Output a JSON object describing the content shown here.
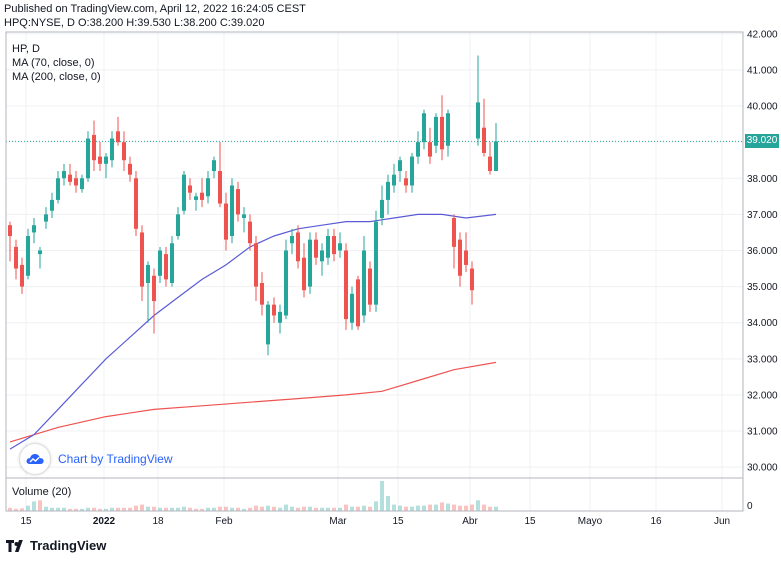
{
  "header": {
    "published": "Published on TradingView.com, April 12, 2022 16:24:05 CEST",
    "ohlc_line": "HPQ:NYSE, D  O:38.200  H:39.530  L:38.200  C:39.020"
  },
  "legend": {
    "symbol": "HP, D",
    "ma70": "MA (70, close, 0)",
    "ma200": "MA (200, close, 0)",
    "volume": "Volume (20)"
  },
  "branding": {
    "chart_by": "Chart by TradingView",
    "footer": "TradingView"
  },
  "colors": {
    "up": "#26a69a",
    "down": "#ef5350",
    "ma70": "#5b5bd6",
    "ma200": "#ef5350",
    "grid": "#eef0f3"
  },
  "chart_data": {
    "type": "candlestick",
    "symbol": "HPQ:NYSE",
    "interval": "D",
    "last_price": "39.020",
    "ylim": [
      29.7,
      42.05
    ],
    "y_ticks": [
      "30.000",
      "31.000",
      "32.000",
      "33.000",
      "34.000",
      "35.000",
      "36.000",
      "37.000",
      "38.000",
      "39.000",
      "40.000",
      "41.000",
      "42.000"
    ],
    "x_ticks": [
      {
        "label": "15",
        "t": 0
      },
      {
        "label": "2022",
        "t": 13
      },
      {
        "label": "18",
        "t": 22
      },
      {
        "label": "Feb",
        "t": 33
      },
      {
        "label": "Mar",
        "t": 52
      },
      {
        "label": "15",
        "t": 62
      },
      {
        "label": "Abr",
        "t": 74
      },
      {
        "label": "15",
        "t": 84
      },
      {
        "label": "Mayo",
        "t": 94
      },
      {
        "label": "16",
        "t": 105
      },
      {
        "label": "Jun",
        "t": 116
      }
    ],
    "candles": [
      {
        "t": 0,
        "o": 36.7,
        "h": 36.8,
        "l": 35.7,
        "c": 36.4
      },
      {
        "t": 1,
        "o": 36.1,
        "h": 36.3,
        "l": 35.2,
        "c": 35.5
      },
      {
        "t": 2,
        "o": 35.6,
        "h": 35.8,
        "l": 34.8,
        "c": 35.0
      },
      {
        "t": 3,
        "o": 35.3,
        "h": 36.6,
        "l": 35.2,
        "c": 36.4
      },
      {
        "t": 4,
        "o": 36.5,
        "h": 36.9,
        "l": 36.2,
        "c": 36.7
      },
      {
        "t": 5,
        "o": 35.9,
        "h": 36.1,
        "l": 35.5,
        "c": 36.0
      },
      {
        "t": 6,
        "o": 36.8,
        "h": 37.2,
        "l": 36.6,
        "c": 37.0
      },
      {
        "t": 7,
        "o": 37.1,
        "h": 37.6,
        "l": 36.9,
        "c": 37.4
      },
      {
        "t": 8,
        "o": 37.4,
        "h": 38.2,
        "l": 37.3,
        "c": 38.0
      },
      {
        "t": 9,
        "o": 38.0,
        "h": 38.4,
        "l": 37.8,
        "c": 38.2
      },
      {
        "t": 10,
        "o": 38.1,
        "h": 38.4,
        "l": 37.8,
        "c": 37.9
      },
      {
        "t": 11,
        "o": 38.0,
        "h": 38.2,
        "l": 37.6,
        "c": 37.8
      },
      {
        "t": 12,
        "o": 37.7,
        "h": 38.1,
        "l": 37.6,
        "c": 38.0
      },
      {
        "t": 13,
        "o": 38.0,
        "h": 39.3,
        "l": 37.9,
        "c": 39.1
      },
      {
        "t": 14,
        "o": 39.2,
        "h": 39.6,
        "l": 38.2,
        "c": 38.5
      },
      {
        "t": 15,
        "o": 38.6,
        "h": 39.0,
        "l": 38.2,
        "c": 38.4
      },
      {
        "t": 16,
        "o": 38.4,
        "h": 38.7,
        "l": 38.0,
        "c": 38.6
      },
      {
        "t": 17,
        "o": 38.5,
        "h": 39.3,
        "l": 38.3,
        "c": 39.1
      },
      {
        "t": 18,
        "o": 39.3,
        "h": 39.7,
        "l": 38.9,
        "c": 39.0
      },
      {
        "t": 19,
        "o": 39.0,
        "h": 39.3,
        "l": 38.2,
        "c": 38.5
      },
      {
        "t": 20,
        "o": 38.4,
        "h": 38.6,
        "l": 37.9,
        "c": 38.1
      },
      {
        "t": 21,
        "o": 38.0,
        "h": 38.2,
        "l": 36.4,
        "c": 36.6
      },
      {
        "t": 22,
        "o": 36.5,
        "h": 36.7,
        "l": 34.6,
        "c": 35.0
      },
      {
        "t": 23,
        "o": 35.1,
        "h": 35.7,
        "l": 34.0,
        "c": 35.6
      },
      {
        "t": 24,
        "o": 35.3,
        "h": 35.5,
        "l": 33.7,
        "c": 34.6
      },
      {
        "t": 25,
        "o": 35.3,
        "h": 36.1,
        "l": 35.1,
        "c": 36.0
      },
      {
        "t": 26,
        "o": 35.9,
        "h": 36.1,
        "l": 35.0,
        "c": 35.2
      },
      {
        "t": 27,
        "o": 35.1,
        "h": 36.4,
        "l": 35.0,
        "c": 36.2
      },
      {
        "t": 28,
        "o": 36.4,
        "h": 37.2,
        "l": 36.3,
        "c": 37.0
      },
      {
        "t": 29,
        "o": 37.1,
        "h": 38.2,
        "l": 37.0,
        "c": 38.1
      },
      {
        "t": 30,
        "o": 37.8,
        "h": 38.0,
        "l": 37.4,
        "c": 37.6
      },
      {
        "t": 31,
        "o": 37.4,
        "h": 37.6,
        "l": 37.1,
        "c": 37.5
      },
      {
        "t": 32,
        "o": 37.6,
        "h": 38.0,
        "l": 37.2,
        "c": 37.4
      },
      {
        "t": 33,
        "o": 37.5,
        "h": 38.2,
        "l": 37.3,
        "c": 38.0
      },
      {
        "t": 34,
        "o": 38.2,
        "h": 38.6,
        "l": 38.0,
        "c": 38.5
      },
      {
        "t": 35,
        "o": 38.2,
        "h": 39.0,
        "l": 37.2,
        "c": 37.3
      },
      {
        "t": 36,
        "o": 37.3,
        "h": 37.6,
        "l": 36.0,
        "c": 36.3
      },
      {
        "t": 37,
        "o": 36.4,
        "h": 38.0,
        "l": 36.2,
        "c": 37.8
      },
      {
        "t": 38,
        "o": 37.7,
        "h": 37.9,
        "l": 36.8,
        "c": 37.0
      },
      {
        "t": 39,
        "o": 36.9,
        "h": 37.2,
        "l": 36.5,
        "c": 37.0
      },
      {
        "t": 40,
        "o": 36.8,
        "h": 37.0,
        "l": 36.0,
        "c": 36.2
      },
      {
        "t": 41,
        "o": 36.2,
        "h": 36.4,
        "l": 34.6,
        "c": 35.0
      },
      {
        "t": 42,
        "o": 35.1,
        "h": 35.4,
        "l": 34.2,
        "c": 34.5
      },
      {
        "t": 43,
        "o": 33.4,
        "h": 34.6,
        "l": 33.1,
        "c": 34.5
      },
      {
        "t": 44,
        "o": 34.5,
        "h": 34.7,
        "l": 34.0,
        "c": 34.2
      },
      {
        "t": 45,
        "o": 34.0,
        "h": 34.5,
        "l": 33.7,
        "c": 34.3
      },
      {
        "t": 46,
        "o": 34.2,
        "h": 36.3,
        "l": 34.1,
        "c": 36.0
      },
      {
        "t": 47,
        "o": 36.2,
        "h": 36.6,
        "l": 35.9,
        "c": 36.4
      },
      {
        "t": 48,
        "o": 36.5,
        "h": 36.7,
        "l": 35.5,
        "c": 35.7
      },
      {
        "t": 49,
        "o": 35.8,
        "h": 36.2,
        "l": 34.7,
        "c": 34.9
      },
      {
        "t": 50,
        "o": 35.0,
        "h": 36.5,
        "l": 34.8,
        "c": 36.3
      },
      {
        "t": 51,
        "o": 36.3,
        "h": 36.5,
        "l": 35.6,
        "c": 35.8
      },
      {
        "t": 52,
        "o": 35.7,
        "h": 36.2,
        "l": 35.3,
        "c": 36.0
      },
      {
        "t": 53,
        "o": 35.8,
        "h": 36.6,
        "l": 35.6,
        "c": 36.4
      },
      {
        "t": 54,
        "o": 36.4,
        "h": 36.6,
        "l": 35.7,
        "c": 35.9
      },
      {
        "t": 55,
        "o": 36.0,
        "h": 36.5,
        "l": 35.8,
        "c": 36.2
      },
      {
        "t": 56,
        "o": 36.0,
        "h": 36.2,
        "l": 33.8,
        "c": 34.1
      },
      {
        "t": 57,
        "o": 34.0,
        "h": 35.0,
        "l": 33.8,
        "c": 34.8
      },
      {
        "t": 58,
        "o": 35.2,
        "h": 35.3,
        "l": 33.8,
        "c": 33.9
      },
      {
        "t": 59,
        "o": 34.2,
        "h": 36.4,
        "l": 34.0,
        "c": 36.0
      },
      {
        "t": 60,
        "o": 35.5,
        "h": 35.7,
        "l": 34.3,
        "c": 34.5
      },
      {
        "t": 61,
        "o": 34.5,
        "h": 37.1,
        "l": 34.3,
        "c": 36.8
      },
      {
        "t": 62,
        "o": 36.9,
        "h": 37.8,
        "l": 36.7,
        "c": 37.4
      },
      {
        "t": 63,
        "o": 37.4,
        "h": 38.1,
        "l": 37.0,
        "c": 37.9
      },
      {
        "t": 64,
        "o": 37.8,
        "h": 38.4,
        "l": 37.6,
        "c": 38.1
      },
      {
        "t": 65,
        "o": 38.2,
        "h": 38.6,
        "l": 37.9,
        "c": 38.5
      },
      {
        "t": 66,
        "o": 38.0,
        "h": 38.2,
        "l": 37.6,
        "c": 37.8
      },
      {
        "t": 67,
        "o": 37.8,
        "h": 38.7,
        "l": 37.6,
        "c": 38.6
      },
      {
        "t": 68,
        "o": 38.6,
        "h": 39.3,
        "l": 38.4,
        "c": 39.0
      },
      {
        "t": 69,
        "o": 39.0,
        "h": 39.9,
        "l": 38.8,
        "c": 39.8
      },
      {
        "t": 70,
        "o": 39.0,
        "h": 39.4,
        "l": 38.4,
        "c": 38.6
      },
      {
        "t": 71,
        "o": 38.9,
        "h": 39.8,
        "l": 38.7,
        "c": 39.7
      },
      {
        "t": 72,
        "o": 39.7,
        "h": 40.3,
        "l": 38.5,
        "c": 38.8
      },
      {
        "t": 73,
        "o": 38.9,
        "h": 39.9,
        "l": 38.6,
        "c": 39.8
      },
      {
        "t": 74,
        "o": 36.9,
        "h": 37.0,
        "l": 35.5,
        "c": 36.1
      },
      {
        "t": 75,
        "o": 36.3,
        "h": 36.5,
        "l": 35.0,
        "c": 35.3
      },
      {
        "t": 76,
        "o": 36.0,
        "h": 36.5,
        "l": 35.4,
        "c": 35.6
      },
      {
        "t": 77,
        "o": 35.5,
        "h": 35.7,
        "l": 34.5,
        "c": 34.9
      },
      {
        "t": 78,
        "o": 39.1,
        "h": 41.4,
        "l": 38.9,
        "c": 40.1
      },
      {
        "t": 79,
        "o": 39.4,
        "h": 40.2,
        "l": 38.6,
        "c": 38.7
      },
      {
        "t": 80,
        "o": 38.6,
        "h": 39.0,
        "l": 38.1,
        "c": 38.2
      },
      {
        "t": 81,
        "o": 38.2,
        "h": 39.53,
        "l": 38.2,
        "c": 39.02
      }
    ],
    "ma70": [
      {
        "t": 0,
        "v": 30.5
      },
      {
        "t": 4,
        "v": 30.9
      },
      {
        "t": 8,
        "v": 31.6
      },
      {
        "t": 12,
        "v": 32.3
      },
      {
        "t": 16,
        "v": 33.0
      },
      {
        "t": 20,
        "v": 33.6
      },
      {
        "t": 24,
        "v": 34.2
      },
      {
        "t": 28,
        "v": 34.7
      },
      {
        "t": 32,
        "v": 35.2
      },
      {
        "t": 36,
        "v": 35.6
      },
      {
        "t": 40,
        "v": 36.1
      },
      {
        "t": 44,
        "v": 36.4
      },
      {
        "t": 48,
        "v": 36.6
      },
      {
        "t": 52,
        "v": 36.7
      },
      {
        "t": 56,
        "v": 36.8
      },
      {
        "t": 60,
        "v": 36.8
      },
      {
        "t": 64,
        "v": 36.9
      },
      {
        "t": 68,
        "v": 37.0
      },
      {
        "t": 72,
        "v": 37.0
      },
      {
        "t": 76,
        "v": 36.9
      },
      {
        "t": 81,
        "v": 37.0
      }
    ],
    "ma200": [
      {
        "t": 0,
        "v": 30.7
      },
      {
        "t": 8,
        "v": 31.1
      },
      {
        "t": 16,
        "v": 31.4
      },
      {
        "t": 24,
        "v": 31.6
      },
      {
        "t": 32,
        "v": 31.7
      },
      {
        "t": 40,
        "v": 31.8
      },
      {
        "t": 48,
        "v": 31.9
      },
      {
        "t": 56,
        "v": 32.0
      },
      {
        "t": 62,
        "v": 32.1
      },
      {
        "t": 68,
        "v": 32.4
      },
      {
        "t": 74,
        "v": 32.7
      },
      {
        "t": 81,
        "v": 32.9
      }
    ],
    "volume": [
      {
        "t": 0,
        "v": 0.3,
        "up": false
      },
      {
        "t": 1,
        "v": 0.2,
        "up": false
      },
      {
        "t": 2,
        "v": 0.25,
        "up": false
      },
      {
        "t": 3,
        "v": 0.5,
        "up": true
      },
      {
        "t": 4,
        "v": 0.9,
        "up": true
      },
      {
        "t": 5,
        "v": 1.0,
        "up": false
      },
      {
        "t": 6,
        "v": 0.4,
        "up": true
      },
      {
        "t": 7,
        "v": 0.3,
        "up": true
      },
      {
        "t": 8,
        "v": 0.3,
        "up": true
      },
      {
        "t": 9,
        "v": 0.3,
        "up": true
      },
      {
        "t": 10,
        "v": 0.2,
        "up": false
      },
      {
        "t": 11,
        "v": 0.2,
        "up": false
      },
      {
        "t": 12,
        "v": 0.2,
        "up": true
      },
      {
        "t": 13,
        "v": 0.3,
        "up": true
      },
      {
        "t": 14,
        "v": 0.3,
        "up": false
      },
      {
        "t": 15,
        "v": 0.2,
        "up": false
      },
      {
        "t": 16,
        "v": 0.2,
        "up": true
      },
      {
        "t": 17,
        "v": 0.3,
        "up": true
      },
      {
        "t": 18,
        "v": 0.3,
        "up": false
      },
      {
        "t": 19,
        "v": 0.3,
        "up": false
      },
      {
        "t": 20,
        "v": 0.3,
        "up": false
      },
      {
        "t": 21,
        "v": 0.5,
        "up": false
      },
      {
        "t": 22,
        "v": 0.6,
        "up": false
      },
      {
        "t": 23,
        "v": 0.4,
        "up": true
      },
      {
        "t": 24,
        "v": 0.4,
        "up": false
      },
      {
        "t": 25,
        "v": 0.3,
        "up": true
      },
      {
        "t": 26,
        "v": 0.3,
        "up": false
      },
      {
        "t": 27,
        "v": 0.3,
        "up": true
      },
      {
        "t": 28,
        "v": 0.3,
        "up": true
      },
      {
        "t": 29,
        "v": 0.4,
        "up": true
      },
      {
        "t": 30,
        "v": 0.3,
        "up": false
      },
      {
        "t": 31,
        "v": 0.2,
        "up": false
      },
      {
        "t": 32,
        "v": 0.2,
        "up": false
      },
      {
        "t": 33,
        "v": 0.3,
        "up": true
      },
      {
        "t": 34,
        "v": 0.3,
        "up": true
      },
      {
        "t": 35,
        "v": 0.4,
        "up": false
      },
      {
        "t": 36,
        "v": 0.4,
        "up": false
      },
      {
        "t": 37,
        "v": 0.3,
        "up": true
      },
      {
        "t": 38,
        "v": 0.3,
        "up": false
      },
      {
        "t": 39,
        "v": 0.2,
        "up": true
      },
      {
        "t": 40,
        "v": 0.3,
        "up": false
      },
      {
        "t": 41,
        "v": 0.5,
        "up": false
      },
      {
        "t": 42,
        "v": 0.4,
        "up": false
      },
      {
        "t": 43,
        "v": 0.5,
        "up": true
      },
      {
        "t": 44,
        "v": 0.4,
        "up": false
      },
      {
        "t": 45,
        "v": 0.3,
        "up": true
      },
      {
        "t": 46,
        "v": 0.6,
        "up": true
      },
      {
        "t": 47,
        "v": 0.4,
        "up": true
      },
      {
        "t": 48,
        "v": 0.3,
        "up": false
      },
      {
        "t": 49,
        "v": 0.4,
        "up": false
      },
      {
        "t": 50,
        "v": 0.4,
        "up": true
      },
      {
        "t": 51,
        "v": 0.3,
        "up": false
      },
      {
        "t": 52,
        "v": 0.3,
        "up": true
      },
      {
        "t": 53,
        "v": 0.3,
        "up": true
      },
      {
        "t": 54,
        "v": 0.3,
        "up": false
      },
      {
        "t": 55,
        "v": 0.3,
        "up": true
      },
      {
        "t": 56,
        "v": 0.6,
        "up": false
      },
      {
        "t": 57,
        "v": 0.4,
        "up": true
      },
      {
        "t": 58,
        "v": 0.4,
        "up": false
      },
      {
        "t": 59,
        "v": 0.5,
        "up": true
      },
      {
        "t": 60,
        "v": 0.4,
        "up": false
      },
      {
        "t": 61,
        "v": 0.9,
        "up": true
      },
      {
        "t": 62,
        "v": 2.8,
        "up": true
      },
      {
        "t": 63,
        "v": 1.4,
        "up": true
      },
      {
        "t": 64,
        "v": 0.6,
        "up": true
      },
      {
        "t": 65,
        "v": 0.5,
        "up": true
      },
      {
        "t": 66,
        "v": 0.4,
        "up": false
      },
      {
        "t": 67,
        "v": 0.4,
        "up": true
      },
      {
        "t": 68,
        "v": 0.5,
        "up": true
      },
      {
        "t": 69,
        "v": 0.5,
        "up": true
      },
      {
        "t": 70,
        "v": 0.6,
        "up": false
      },
      {
        "t": 71,
        "v": 0.6,
        "up": true
      },
      {
        "t": 72,
        "v": 0.8,
        "up": false
      },
      {
        "t": 73,
        "v": 0.7,
        "up": true
      },
      {
        "t": 74,
        "v": 0.6,
        "up": false
      },
      {
        "t": 75,
        "v": 0.5,
        "up": false
      },
      {
        "t": 76,
        "v": 0.5,
        "up": false
      },
      {
        "t": 77,
        "v": 0.6,
        "up": false
      },
      {
        "t": 78,
        "v": 1.0,
        "up": true
      },
      {
        "t": 79,
        "v": 0.6,
        "up": false
      },
      {
        "t": 80,
        "v": 0.4,
        "up": false
      },
      {
        "t": 81,
        "v": 0.4,
        "up": true
      }
    ],
    "volume_axis_label": "0"
  }
}
